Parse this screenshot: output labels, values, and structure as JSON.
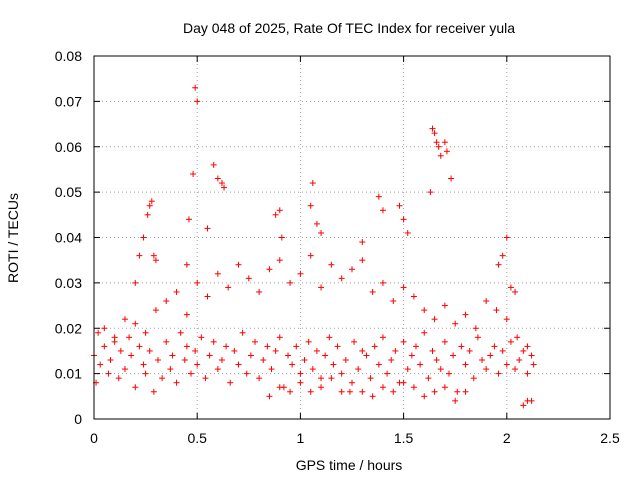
{
  "chart_data": {
    "type": "scatter",
    "title": "Day 048 of 2025, Rate Of TEC Index for receiver yula",
    "xlabel": "GPS time / hours",
    "ylabel": "ROTI / TECUs",
    "xlim": [
      0,
      2.5
    ],
    "ylim": [
      0,
      0.08
    ],
    "x_ticks": [
      0,
      0.5,
      1,
      1.5,
      2,
      2.5
    ],
    "x_tick_labels": [
      "0",
      "0.5",
      "1",
      "1.5",
      "2",
      "2.5"
    ],
    "y_ticks": [
      0,
      0.01,
      0.02,
      0.03,
      0.04,
      0.05,
      0.06,
      0.07,
      0.08
    ],
    "y_tick_labels": [
      "0",
      "0.01",
      "0.02",
      "0.03",
      "0.04",
      "0.05",
      "0.06",
      "0.07",
      "0.08"
    ],
    "grid": true,
    "marker": "plus",
    "color": "#ff0000",
    "series": [
      {
        "x": [
          0.0,
          0.01,
          0.02,
          0.03,
          0.05,
          0.07,
          0.08,
          0.1,
          0.12,
          0.13,
          0.15,
          0.17,
          0.18,
          0.2,
          0.22,
          0.24,
          0.25,
          0.27,
          0.29,
          0.31,
          0.33,
          0.35,
          0.37,
          0.38,
          0.4,
          0.42,
          0.44,
          0.45,
          0.47,
          0.49,
          0.5,
          0.52,
          0.54,
          0.56,
          0.58,
          0.6,
          0.62,
          0.64,
          0.66,
          0.68,
          0.7,
          0.72,
          0.74,
          0.76,
          0.78,
          0.8,
          0.82,
          0.84,
          0.86,
          0.88,
          0.9,
          0.92,
          0.94,
          0.96,
          0.98,
          1.0,
          1.02,
          1.04,
          1.06,
          1.08,
          1.1,
          1.12,
          1.14,
          1.16,
          1.18,
          1.2,
          1.22,
          1.24,
          1.26,
          1.28,
          1.3,
          1.32,
          1.34,
          1.36,
          1.38,
          1.4,
          1.42,
          1.44,
          1.46,
          1.48,
          1.5,
          1.52,
          1.54,
          1.56,
          1.58,
          1.6,
          1.62,
          1.64,
          1.66,
          1.68,
          1.7,
          1.72,
          1.74,
          1.76,
          1.78,
          1.8,
          1.82,
          1.84,
          1.86,
          1.88,
          1.9,
          1.92,
          1.94,
          1.96,
          1.98,
          2.0,
          2.02,
          2.04,
          2.06,
          2.08,
          2.1,
          2.12,
          2.13
        ],
        "y": [
          0.014,
          0.008,
          0.019,
          0.012,
          0.016,
          0.01,
          0.013,
          0.017,
          0.009,
          0.015,
          0.011,
          0.018,
          0.014,
          0.007,
          0.016,
          0.012,
          0.01,
          0.015,
          0.006,
          0.013,
          0.009,
          0.017,
          0.011,
          0.014,
          0.008,
          0.019,
          0.013,
          0.016,
          0.01,
          0.015,
          0.012,
          0.018,
          0.009,
          0.014,
          0.017,
          0.011,
          0.013,
          0.016,
          0.008,
          0.015,
          0.012,
          0.019,
          0.01,
          0.014,
          0.017,
          0.009,
          0.013,
          0.016,
          0.011,
          0.015,
          0.018,
          0.007,
          0.014,
          0.012,
          0.016,
          0.01,
          0.013,
          0.017,
          0.011,
          0.015,
          0.009,
          0.014,
          0.018,
          0.012,
          0.016,
          0.01,
          0.013,
          0.006,
          0.017,
          0.011,
          0.015,
          0.014,
          0.009,
          0.016,
          0.012,
          0.018,
          0.01,
          0.013,
          0.015,
          0.008,
          0.017,
          0.011,
          0.014,
          0.016,
          0.012,
          0.019,
          0.009,
          0.015,
          0.013,
          0.011,
          0.017,
          0.01,
          0.014,
          0.006,
          0.016,
          0.012,
          0.015,
          0.009,
          0.018,
          0.013,
          0.011,
          0.014,
          0.016,
          0.01,
          0.015,
          0.012,
          0.017,
          0.011,
          0.013,
          0.015,
          0.01,
          0.014,
          0.012
        ],
        "x2": [
          0.2,
          0.22,
          0.24,
          0.26,
          0.27,
          0.28,
          0.29,
          0.3,
          0.45,
          0.46,
          0.48,
          0.49,
          0.5,
          0.55,
          0.58,
          0.6,
          0.62,
          0.63,
          0.88,
          0.9,
          0.91,
          1.05,
          1.06,
          1.08,
          1.1,
          1.3,
          1.38,
          1.4,
          1.48,
          1.5,
          1.52,
          1.63,
          1.64,
          1.65,
          1.66,
          1.67,
          1.68,
          1.7,
          1.71,
          1.73,
          1.96,
          1.98,
          2.0,
          2.02,
          2.04
        ],
        "y2": [
          0.03,
          0.036,
          0.04,
          0.045,
          0.047,
          0.048,
          0.036,
          0.035,
          0.034,
          0.044,
          0.054,
          0.073,
          0.07,
          0.042,
          0.056,
          0.053,
          0.052,
          0.051,
          0.045,
          0.046,
          0.04,
          0.047,
          0.052,
          0.043,
          0.041,
          0.039,
          0.049,
          0.046,
          0.047,
          0.044,
          0.041,
          0.05,
          0.064,
          0.063,
          0.061,
          0.06,
          0.058,
          0.061,
          0.059,
          0.053,
          0.034,
          0.036,
          0.04,
          0.029,
          0.028
        ],
        "x3": [
          0.05,
          0.1,
          0.15,
          0.2,
          0.25,
          0.3,
          0.35,
          0.4,
          0.45,
          0.5,
          0.55,
          0.6,
          0.65,
          0.7,
          0.75,
          0.8,
          0.85,
          0.9,
          0.95,
          1.0,
          1.05,
          1.1,
          1.15,
          1.2,
          1.25,
          1.3,
          1.35,
          1.4,
          1.45,
          1.5,
          1.55,
          1.6,
          1.65,
          1.7,
          1.75,
          1.8,
          1.85,
          1.9,
          1.95,
          2.0,
          2.05,
          2.1
        ],
        "y3": [
          0.02,
          0.018,
          0.022,
          0.021,
          0.019,
          0.024,
          0.026,
          0.028,
          0.023,
          0.03,
          0.027,
          0.032,
          0.029,
          0.034,
          0.031,
          0.028,
          0.033,
          0.035,
          0.03,
          0.032,
          0.036,
          0.029,
          0.034,
          0.031,
          0.033,
          0.035,
          0.028,
          0.03,
          0.026,
          0.029,
          0.027,
          0.024,
          0.022,
          0.025,
          0.021,
          0.023,
          0.02,
          0.026,
          0.024,
          0.022,
          0.018,
          0.016
        ],
        "x4": [
          0.85,
          0.9,
          0.95,
          1.0,
          1.05,
          1.1,
          1.15,
          1.2,
          1.25,
          1.3,
          1.35,
          1.4,
          1.45,
          1.5,
          1.55,
          1.6,
          1.65,
          1.7,
          1.75,
          1.8,
          2.08,
          2.1,
          2.12
        ],
        "y4": [
          0.005,
          0.007,
          0.006,
          0.008,
          0.006,
          0.007,
          0.009,
          0.006,
          0.008,
          0.006,
          0.005,
          0.007,
          0.006,
          0.008,
          0.007,
          0.005,
          0.006,
          0.007,
          0.004,
          0.006,
          0.003,
          0.004,
          0.004
        ]
      }
    ]
  }
}
